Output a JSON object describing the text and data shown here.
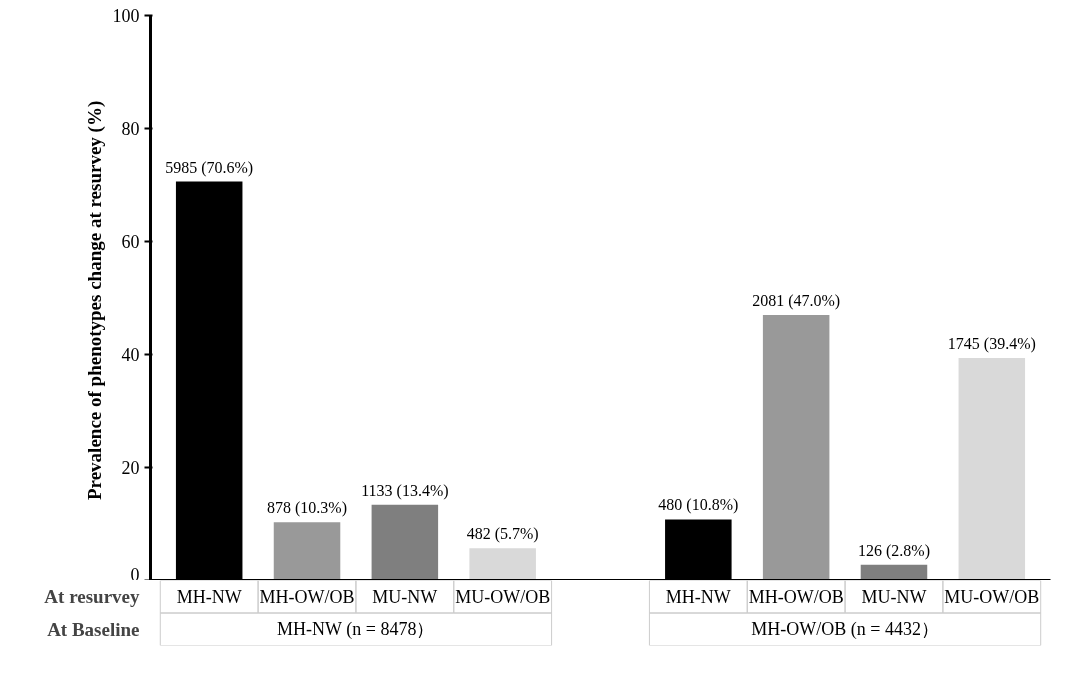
{
  "chart_data": {
    "type": "bar",
    "ylabel": "Prevalence of phenotypes change at resurvey  (%)",
    "categories": [
      "MH-NW",
      "MH-OW/OB",
      "MU-NW",
      "MU-OW/OB",
      null,
      "MH-NW",
      "MH-OW/OB",
      "MU-NW",
      "MU-OW/OB"
    ],
    "values": [
      70.6,
      10.3,
      13.4,
      5.7,
      null,
      10.8,
      47.0,
      2.8,
      39.4
    ],
    "colors": [
      "#000000",
      "#999999",
      "#7f7f7f",
      "#d9d9d9",
      "#ffffff",
      "#000000",
      "#999999",
      "#7f7f7f",
      "#d9d9d9"
    ],
    "value_labels": [
      "5985 (70.6%)",
      "878 (10.3%)",
      "1133 (13.4%)",
      "482 (5.7%)",
      null,
      "480 (10.8%)",
      "2081 (47.0%)",
      "126 (2.8%)",
      "1745 (39.4%)"
    ],
    "ylim": [
      0,
      100
    ],
    "yticks": [
      0,
      20,
      40,
      60,
      80,
      100
    ],
    "grid": false,
    "annotations": [
      "At resurvey",
      "At Baseline",
      "MH-NW (n = 8478）",
      "MH-OW/OB (n = 4432）"
    ]
  }
}
